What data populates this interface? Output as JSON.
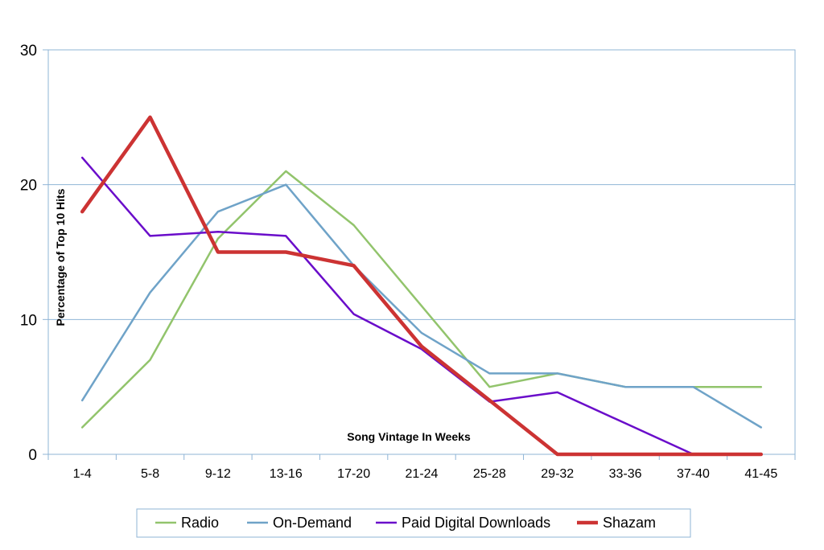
{
  "chart_data": {
    "type": "line",
    "title": "",
    "xlabel": "Song Vintage In Weeks",
    "ylabel": "Percentage of Top 10 Hits",
    "ylim": [
      0,
      30
    ],
    "yticks": [
      "0",
      "10",
      "20",
      "30"
    ],
    "grid": true,
    "legend_position": "bottom",
    "categories": [
      "1-4",
      "5-8",
      "9-12",
      "13-16",
      "17-20",
      "21-24",
      "25-28",
      "29-32",
      "33-36",
      "37-40",
      "41-45"
    ],
    "series": [
      {
        "name": "Radio",
        "color": "#92c46c",
        "values": [
          2,
          7,
          16,
          21,
          17,
          11,
          5,
          6,
          5,
          5,
          5
        ]
      },
      {
        "name": "On-Demand",
        "color": "#6fa3c8",
        "values": [
          4,
          12,
          18,
          20,
          14,
          9,
          6,
          6,
          5,
          5,
          2
        ]
      },
      {
        "name": "Paid Digital Downloads",
        "color": "#6a0dca",
        "values": [
          22,
          16.2,
          16.5,
          16.2,
          10.4,
          7.8,
          3.9,
          4.6,
          2.3,
          0,
          0
        ]
      },
      {
        "name": "Shazam",
        "color": "#cc3333",
        "values": [
          18,
          25,
          15,
          15,
          14,
          8,
          4,
          0,
          0,
          0,
          0
        ]
      }
    ]
  }
}
